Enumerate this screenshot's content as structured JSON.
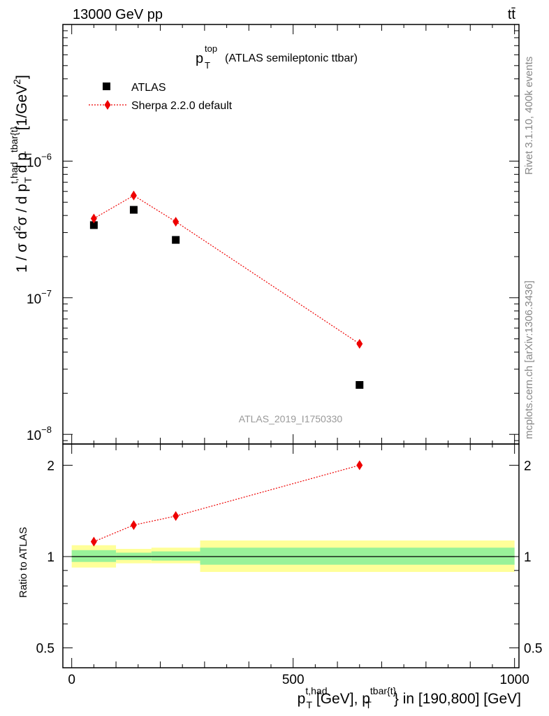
{
  "header": {
    "left": "13000 GeV pp",
    "right": "tt̄"
  },
  "side_labels": {
    "rivet": "Rivet 3.1.10,  400k events",
    "mcplots": "mcplots.cern.ch [arXiv:1306.3436]"
  },
  "watermark": "ATLAS_2019_I1750330",
  "chart_data": {
    "type": "scatter",
    "title_parts": {
      "base": "p",
      "sup": "top",
      "sub": "T",
      "rest": "(ATLAS semileptonic ttbar)"
    },
    "ylabel_main": "1 / σ d²σ / d p_T^{t,had} d p_T^{tbar{t}} [1/GeV²]",
    "ylabel_ratio": "Ratio to ATLAS",
    "xlabel": "p_T^{t,had} [GeV], p_T^{tbar{t}} in [190,800] [GeV]",
    "x_range": [
      -20,
      1010
    ],
    "y_main_range": [
      8.5e-09,
      1e-05
    ],
    "y_main_scale": "log",
    "y_ratio_range": [
      0.43,
      2.35
    ],
    "y_ratio_scale": "log",
    "x_ticks": [
      0,
      500,
      1000
    ],
    "y_main_ticks": [
      {
        "v": 1e-08,
        "label": "10",
        "exp": "−8"
      },
      {
        "v": 1e-07,
        "label": "10",
        "exp": "−7"
      },
      {
        "v": 1e-06,
        "label": "10",
        "exp": "−6"
      }
    ],
    "y_ratio_ticks": [
      {
        "v": 0.5,
        "label": "0.5"
      },
      {
        "v": 1,
        "label": "1"
      },
      {
        "v": 2,
        "label": "2"
      }
    ],
    "legend_position": "top-left",
    "series": [
      {
        "name": "ATLAS",
        "marker": "square",
        "color": "#000000",
        "x": [
          50,
          140,
          235,
          650
        ],
        "y": [
          3.4e-07,
          4.4e-07,
          2.65e-07,
          2.3e-08
        ]
      },
      {
        "name": "Sherpa 2.2.0 default",
        "marker": "diamond",
        "color": "#ee0000",
        "line": "dotted",
        "x": [
          50,
          140,
          235,
          650
        ],
        "y": [
          3.8e-07,
          5.6e-07,
          3.6e-07,
          4.6e-08
        ]
      }
    ],
    "ratio_series": {
      "name": "Sherpa 2.2.0 default",
      "x": [
        50,
        140,
        235,
        650
      ],
      "y": [
        1.12,
        1.27,
        1.36,
        2.0
      ]
    },
    "ratio_bands": [
      {
        "x0": 0,
        "x1": 100,
        "yellow": [
          0.92,
          1.09
        ],
        "green": [
          0.96,
          1.05
        ]
      },
      {
        "x0": 100,
        "x1": 180,
        "yellow": [
          0.95,
          1.06
        ],
        "green": [
          0.975,
          1.03
        ]
      },
      {
        "x0": 180,
        "x1": 290,
        "yellow": [
          0.95,
          1.07
        ],
        "green": [
          0.97,
          1.04
        ]
      },
      {
        "x0": 290,
        "x1": 1000,
        "yellow": [
          0.89,
          1.13
        ],
        "green": [
          0.94,
          1.07
        ]
      }
    ]
  },
  "colors": {
    "yellow_band": "#ffff99",
    "green_band": "#99f299",
    "sherpa": "#ee0000",
    "atlas": "#000000",
    "gray_text": "#888888"
  }
}
